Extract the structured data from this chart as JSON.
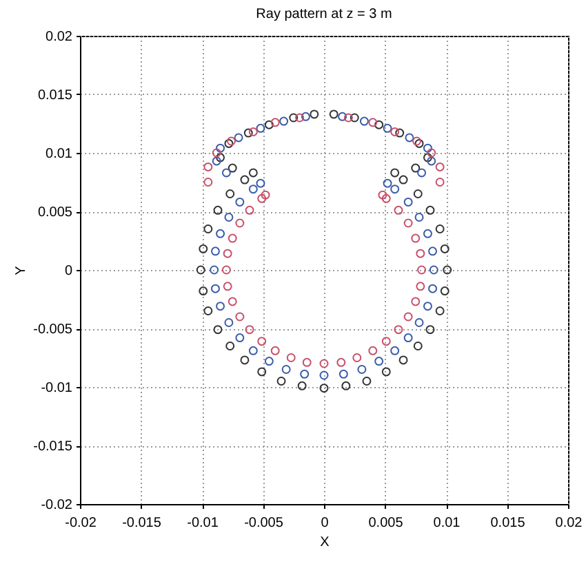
{
  "chart_data": {
    "type": "scatter",
    "title": "Ray pattern at z = 3 m",
    "xlabel": "X",
    "ylabel": "Y",
    "xlim": [
      -0.02,
      0.02
    ],
    "ylim": [
      -0.02,
      0.02
    ],
    "xticks": [
      -0.02,
      -0.015,
      -0.01,
      -0.005,
      0,
      0.005,
      0.01,
      0.015,
      0.02
    ],
    "yticks": [
      -0.02,
      -0.015,
      -0.01,
      -0.005,
      0,
      0.005,
      0.01,
      0.015,
      0.02
    ],
    "grid": true,
    "marker": "circle",
    "series": [
      {
        "color": "#333333",
        "x": [
          -0.0058,
          -0.0065,
          -0.0077,
          -0.0087,
          -0.0095,
          -0.0099,
          -0.0101,
          -0.0099,
          -0.0095,
          -0.0087,
          -0.0077,
          -0.0065,
          -0.0051,
          -0.0035,
          -0.0018,
          0,
          0.0018,
          0.0035,
          0.0051,
          0.0065,
          0.0077,
          0.0087,
          0.0095,
          0.0099,
          0.0101,
          0.0099,
          0.0095,
          0.0087,
          0.0077,
          0.0065,
          0.0058,
          -0.0075,
          -0.0085,
          -0.0078,
          -0.0062,
          -0.0045,
          -0.0025,
          -0.0008,
          0.0008,
          0.0025,
          0.0045,
          0.0062,
          0.0078,
          0.0085,
          0.0075
        ],
        "values": [
          0.0083,
          0.0077,
          0.0065,
          0.0051,
          0.0035,
          0.0018,
          0,
          -0.0018,
          -0.0035,
          -0.0051,
          -0.0065,
          -0.0077,
          -0.0087,
          -0.0095,
          -0.0099,
          -0.0101,
          -0.0099,
          -0.0095,
          -0.0087,
          -0.0077,
          -0.0065,
          -0.0051,
          -0.0035,
          -0.0018,
          0,
          0.0018,
          0.0035,
          0.0051,
          0.0065,
          0.0077,
          0.0083,
          0.0087,
          0.0096,
          0.0108,
          0.0117,
          0.0124,
          0.013,
          0.0133,
          0.0133,
          0.013,
          0.0124,
          0.0117,
          0.0108,
          0.0096,
          0.0087
        ]
      },
      {
        "color": "#3a5caa",
        "x": [
          -0.0052,
          -0.0058,
          -0.0069,
          -0.0078,
          -0.0085,
          -0.0089,
          -0.009,
          -0.0089,
          -0.0085,
          -0.0078,
          -0.0069,
          -0.0058,
          -0.0045,
          -0.0031,
          -0.0016,
          0,
          0.0016,
          0.0031,
          0.0045,
          0.0058,
          0.0069,
          0.0078,
          0.0085,
          0.0089,
          0.009,
          0.0089,
          0.0085,
          0.0078,
          0.0069,
          0.0058,
          0.0052,
          -0.008,
          -0.0088,
          -0.0085,
          -0.007,
          -0.0052,
          -0.0033,
          -0.0015,
          0.0015,
          0.0033,
          0.0052,
          0.007,
          0.0085,
          0.0088,
          0.008
        ],
        "values": [
          0.0074,
          0.0069,
          0.0058,
          0.0045,
          0.0031,
          0.0016,
          0,
          -0.0016,
          -0.0031,
          -0.0045,
          -0.0058,
          -0.0069,
          -0.0078,
          -0.0085,
          -0.0089,
          -0.009,
          -0.0089,
          -0.0085,
          -0.0078,
          -0.0069,
          -0.0058,
          -0.0045,
          -0.0031,
          -0.0016,
          0,
          0.0016,
          0.0031,
          0.0045,
          0.0058,
          0.0069,
          0.0074,
          0.0083,
          0.0093,
          0.0104,
          0.0113,
          0.0121,
          0.0127,
          0.0131,
          0.0131,
          0.0127,
          0.0121,
          0.0113,
          0.0104,
          0.0093,
          0.0083
        ]
      },
      {
        "color": "#c8506a",
        "x": [
          -0.0048,
          -0.0051,
          -0.0061,
          -0.0069,
          -0.0075,
          -0.0079,
          -0.008,
          -0.0079,
          -0.0075,
          -0.0069,
          -0.0061,
          -0.0051,
          -0.004,
          -0.0027,
          -0.0014,
          0,
          0.0014,
          0.0027,
          0.004,
          0.0051,
          0.0061,
          0.0069,
          0.0075,
          0.0079,
          0.008,
          0.0079,
          0.0075,
          0.0069,
          0.0061,
          0.0051,
          0.0048,
          -0.0095,
          -0.0095,
          -0.0088,
          -0.0076,
          -0.0058,
          -0.004,
          -0.002,
          0.002,
          0.004,
          0.0058,
          0.0076,
          0.0088,
          0.0095,
          0.0095
        ],
        "values": [
          0.0064,
          0.0061,
          0.0051,
          0.004,
          0.0027,
          0.0014,
          0,
          -0.0014,
          -0.0027,
          -0.004,
          -0.0051,
          -0.0061,
          -0.0069,
          -0.0075,
          -0.0079,
          -0.008,
          -0.0079,
          -0.0075,
          -0.0069,
          -0.0061,
          -0.0051,
          -0.004,
          -0.0027,
          -0.0014,
          0,
          0.0014,
          0.0027,
          0.004,
          0.0051,
          0.0061,
          0.0064,
          0.0075,
          0.0088,
          0.01,
          0.011,
          0.0118,
          0.0126,
          0.013,
          0.013,
          0.0126,
          0.0118,
          0.011,
          0.01,
          0.0088,
          0.0075
        ]
      }
    ]
  }
}
